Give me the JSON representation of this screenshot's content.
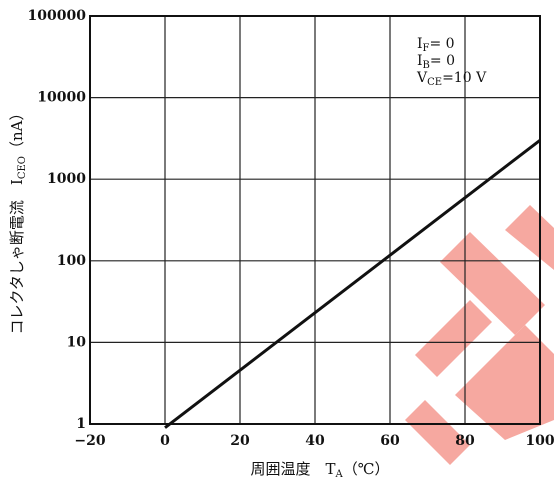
{
  "chart_data": {
    "type": "line",
    "title": "",
    "xlabel": "周囲温度　T_A (℃)",
    "xlabel_parts": {
      "main": "周囲温度　T",
      "sub": "A",
      "unit": "（℃）"
    },
    "ylabel": "コレクタしゃ断電流　I_CEO (nA)",
    "ylabel_parts": {
      "main": "コレクタしゃ断電流　I",
      "sub": "CEO",
      "unit": "（nA）"
    },
    "x_scale": "linear",
    "y_scale": "log",
    "xlim": [
      -20,
      100
    ],
    "ylim": [
      1,
      100000
    ],
    "x_ticks": [
      -20,
      0,
      20,
      40,
      60,
      80,
      100
    ],
    "x_tick_labels": [
      "−20",
      "0",
      "20",
      "40",
      "60",
      "80",
      "100"
    ],
    "y_ticks": [
      1,
      10,
      100,
      1000,
      10000,
      100000
    ],
    "y_tick_labels": [
      "1",
      "10",
      "100",
      "1000",
      "10000",
      "100000"
    ],
    "grid": true,
    "series": [
      {
        "x": [
          0,
          100
        ],
        "y": [
          0.9,
          3000
        ]
      }
    ],
    "annotations": [
      {
        "main": "I",
        "sub": "F",
        "rest": "= 0"
      },
      {
        "main": "I",
        "sub": "B",
        "rest": "= 0"
      },
      {
        "main": "V",
        "sub": "CE",
        "rest": "=10 V"
      }
    ],
    "colors": {
      "line": "#111111",
      "grid": "#222222",
      "watermark": "#f6a8a0"
    }
  }
}
